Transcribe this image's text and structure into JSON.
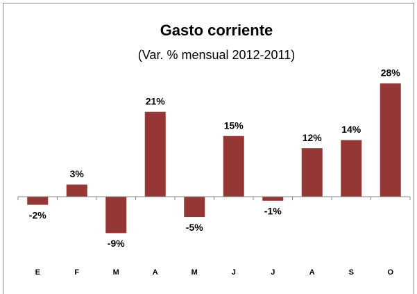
{
  "chart_data": {
    "type": "bar",
    "title": "Gasto corriente",
    "subtitle": "(Var. % mensual 2012-2011)",
    "categories": [
      "E",
      "F",
      "M",
      "A",
      "M",
      "J",
      "J",
      "A",
      "S",
      "O"
    ],
    "values": [
      -2,
      3,
      -9,
      21,
      -5,
      15,
      -1,
      12,
      14,
      28
    ],
    "value_labels": [
      "-2%",
      "3%",
      "-9%",
      "21%",
      "-5%",
      "15%",
      "-1%",
      "12%",
      "14%",
      "28%"
    ],
    "color": "#953735",
    "ylim": [
      -15,
      30
    ]
  }
}
